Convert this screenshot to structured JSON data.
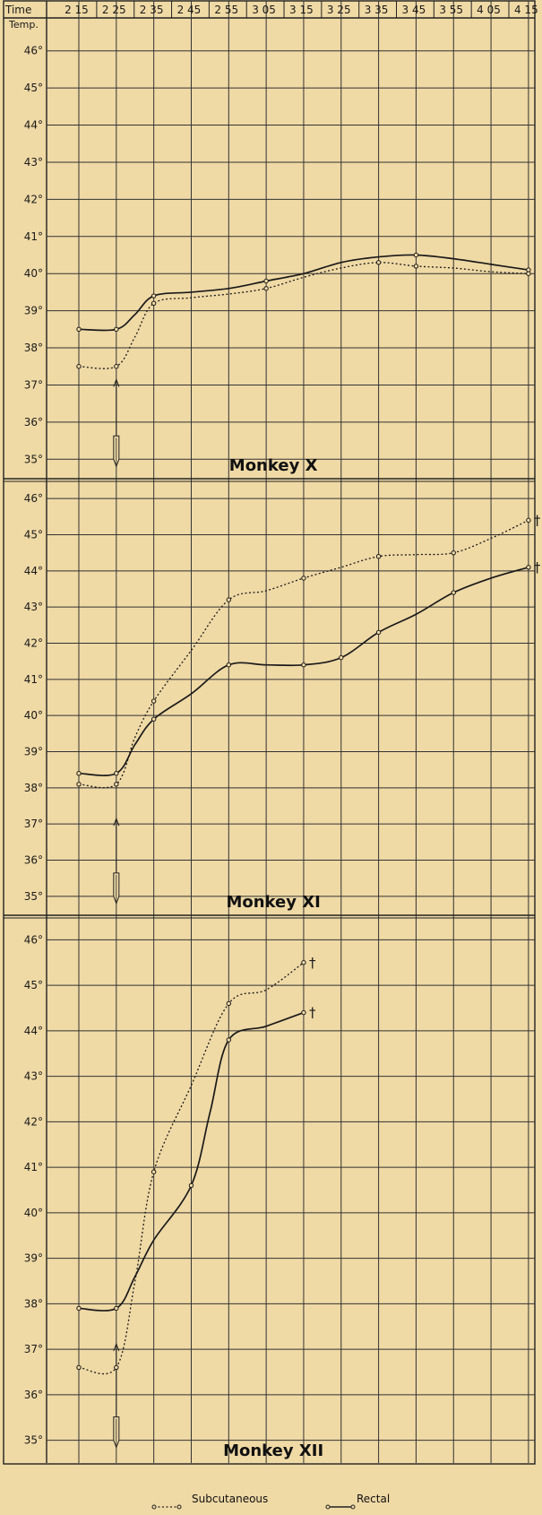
{
  "chart_data": {
    "type": "line",
    "header": {
      "time_label": "Time",
      "temp_label": "Temp."
    },
    "x": [
      "2 15",
      "2 25",
      "2 35",
      "2 45",
      "2 55",
      "3 05",
      "3 15",
      "3 25",
      "3 35",
      "3 45",
      "3 55",
      "4 05",
      "4 15"
    ],
    "y_ticks": [
      "46°",
      "45°",
      "44°",
      "43°",
      "42°",
      "41°",
      "40°",
      "39°",
      "38°",
      "37°",
      "36°",
      "35°"
    ],
    "legend": [
      {
        "name": "Subcutaneous",
        "style": "dotted"
      },
      {
        "name": "Rectal",
        "style": "solid"
      }
    ],
    "panels": [
      {
        "title": "Monkey X",
        "ylim": [
          34.5,
          46.5
        ],
        "injection_at": "2 25",
        "series": [
          {
            "name": "Rectal",
            "style": "solid",
            "points": [
              [
                "2 15",
                38.5
              ],
              [
                "2 25",
                38.5
              ],
              [
                "2 35",
                39.4
              ],
              [
                "3 05",
                39.8
              ],
              [
                "3 45",
                40.5
              ],
              [
                "4 15",
                40.1
              ]
            ],
            "curve": [
              [
                "2 15",
                38.5
              ],
              [
                "2 25",
                38.5
              ],
              [
                "2 30",
                38.9
              ],
              [
                "2 35",
                39.4
              ],
              [
                "2 45",
                39.5
              ],
              [
                "2 55",
                39.6
              ],
              [
                "3 05",
                39.8
              ],
              [
                "3 15",
                40.0
              ],
              [
                "3 25",
                40.3
              ],
              [
                "3 35",
                40.45
              ],
              [
                "3 45",
                40.5
              ],
              [
                "3 55",
                40.4
              ],
              [
                "4 05",
                40.25
              ],
              [
                "4 15",
                40.1
              ]
            ],
            "deaths": []
          },
          {
            "name": "Subcutaneous",
            "style": "dotted",
            "points": [
              [
                "2 15",
                37.5
              ],
              [
                "2 25",
                37.5
              ],
              [
                "2 35",
                39.2
              ],
              [
                "3 05",
                39.6
              ],
              [
                "3 35",
                40.3
              ],
              [
                "3 45",
                40.2
              ],
              [
                "4 15",
                40.0
              ]
            ],
            "curve": [
              [
                "2 15",
                37.5
              ],
              [
                "2 25",
                37.5
              ],
              [
                "2 30",
                38.3
              ],
              [
                "2 35",
                39.2
              ],
              [
                "2 45",
                39.35
              ],
              [
                "2 55",
                39.45
              ],
              [
                "3 05",
                39.6
              ],
              [
                "3 15",
                39.9
              ],
              [
                "3 25",
                40.15
              ],
              [
                "3 35",
                40.3
              ],
              [
                "3 45",
                40.2
              ],
              [
                "3 55",
                40.15
              ],
              [
                "4 05",
                40.05
              ],
              [
                "4 15",
                40.0
              ]
            ],
            "deaths": []
          }
        ]
      },
      {
        "title": "Monkey XI",
        "ylim": [
          34.5,
          46.5
        ],
        "injection_at": "2 25",
        "series": [
          {
            "name": "Rectal",
            "style": "solid",
            "points": [
              [
                "2 15",
                38.4
              ],
              [
                "2 25",
                38.4
              ],
              [
                "2 35",
                39.9
              ],
              [
                "2 55",
                41.4
              ],
              [
                "3 15",
                41.4
              ],
              [
                "3 25",
                41.6
              ],
              [
                "3 35",
                42.3
              ],
              [
                "3 55",
                43.4
              ],
              [
                "4 15",
                44.1
              ]
            ],
            "curve": [
              [
                "2 15",
                38.4
              ],
              [
                "2 25",
                38.4
              ],
              [
                "2 30",
                39.2
              ],
              [
                "2 35",
                39.9
              ],
              [
                "2 45",
                40.6
              ],
              [
                "2 55",
                41.4
              ],
              [
                "3 05",
                41.4
              ],
              [
                "3 15",
                41.4
              ],
              [
                "3 25",
                41.6
              ],
              [
                "3 35",
                42.3
              ],
              [
                "3 45",
                42.8
              ],
              [
                "3 55",
                43.4
              ],
              [
                "4 05",
                43.8
              ],
              [
                "4 15",
                44.1
              ]
            ],
            "deaths": [
              [
                "4 15",
                44.1
              ]
            ]
          },
          {
            "name": "Subcutaneous",
            "style": "dotted",
            "points": [
              [
                "2 15",
                38.1
              ],
              [
                "2 25",
                38.1
              ],
              [
                "2 35",
                40.4
              ],
              [
                "2 55",
                43.2
              ],
              [
                "3 15",
                43.8
              ],
              [
                "3 35",
                44.4
              ],
              [
                "3 55",
                44.5
              ],
              [
                "4 15",
                45.4
              ]
            ],
            "curve": [
              [
                "2 15",
                38.1
              ],
              [
                "2 25",
                38.1
              ],
              [
                "2 30",
                39.4
              ],
              [
                "2 35",
                40.4
              ],
              [
                "2 45",
                41.8
              ],
              [
                "2 55",
                43.2
              ],
              [
                "3 05",
                43.45
              ],
              [
                "3 15",
                43.8
              ],
              [
                "3 25",
                44.1
              ],
              [
                "3 35",
                44.4
              ],
              [
                "3 45",
                44.45
              ],
              [
                "3 55",
                44.5
              ],
              [
                "4 05",
                44.9
              ],
              [
                "4 15",
                45.4
              ]
            ],
            "deaths": [
              [
                "4 15",
                45.4
              ]
            ]
          }
        ]
      },
      {
        "title": "Monkey XII",
        "ylim": [
          34.5,
          46.5
        ],
        "injection_at": "2 25",
        "series": [
          {
            "name": "Rectal",
            "style": "solid",
            "points": [
              [
                "2 15",
                37.9
              ],
              [
                "2 25",
                37.9
              ],
              [
                "2 45",
                40.6
              ],
              [
                "2 55",
                43.8
              ],
              [
                "3 15",
                44.4
              ]
            ],
            "curve": [
              [
                "2 15",
                37.9
              ],
              [
                "2 25",
                37.9
              ],
              [
                "2 30",
                38.6
              ],
              [
                "2 35",
                39.4
              ],
              [
                "2 45",
                40.6
              ],
              [
                "2 50",
                42.2
              ],
              [
                "2 55",
                43.8
              ],
              [
                "3 05",
                44.1
              ],
              [
                "3 15",
                44.4
              ]
            ],
            "deaths": [
              [
                "3 15",
                44.4
              ]
            ]
          },
          {
            "name": "Subcutaneous",
            "style": "dotted",
            "points": [
              [
                "2 15",
                36.6
              ],
              [
                "2 25",
                36.6
              ],
              [
                "2 35",
                40.9
              ],
              [
                "2 55",
                44.6
              ],
              [
                "3 15",
                45.5
              ]
            ],
            "curve": [
              [
                "2 15",
                36.6
              ],
              [
                "2 25",
                36.6
              ],
              [
                "2 30",
                38.5
              ],
              [
                "2 35",
                40.9
              ],
              [
                "2 45",
                42.8
              ],
              [
                "2 55",
                44.6
              ],
              [
                "3 05",
                44.9
              ],
              [
                "3 15",
                45.5
              ]
            ],
            "deaths": [
              [
                "3 15",
                45.5
              ]
            ]
          }
        ]
      }
    ]
  }
}
